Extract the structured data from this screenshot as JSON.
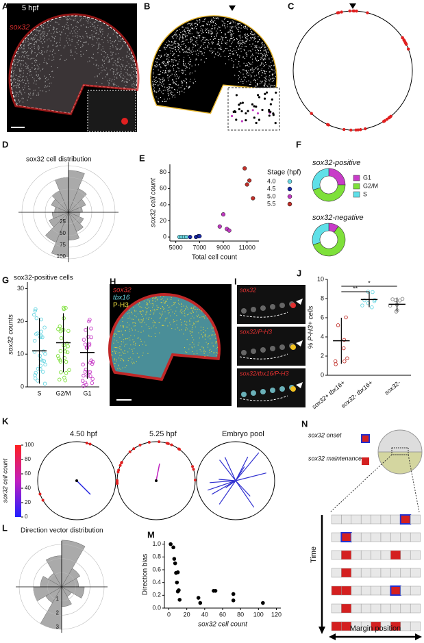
{
  "panels": {
    "A": {
      "letter": "A",
      "stage": "5 hpf",
      "gene": "sox32"
    },
    "B": {
      "letter": "B"
    },
    "C": {
      "letter": "C"
    },
    "D": {
      "letter": "D",
      "title": "sox32 cell distribution",
      "rings": [
        25,
        50,
        75,
        100
      ],
      "values": [
        90,
        55,
        40,
        30,
        25,
        35,
        45,
        60,
        95,
        70,
        45,
        35,
        30,
        40,
        50,
        75
      ]
    },
    "F": {
      "letter": "F",
      "positive": "sox32-positive",
      "negative": "sox32-negative",
      "legend": [
        "G1",
        "G2/M",
        "S"
      ],
      "colors": [
        "#c83cc8",
        "#7ee03a",
        "#5fe0e8"
      ],
      "positive_values": [
        25,
        45,
        30
      ],
      "negative_values": [
        10,
        60,
        30
      ]
    },
    "H": {
      "letter": "H",
      "labels": [
        "sox32",
        "tbx16",
        "P-H3"
      ]
    },
    "I": {
      "letter": "I",
      "labels": [
        "sox32",
        "sox32/P-H3",
        "sox32/tbx16/P-H3"
      ]
    },
    "K": {
      "letter": "K",
      "titles": [
        "4.50 hpf",
        "5.25 hpf",
        "Embryo pool"
      ],
      "colorbar_label": "sox32 cell count",
      "colorbar_ticks": [
        0,
        20,
        40,
        60,
        80,
        100
      ]
    },
    "L": {
      "letter": "L",
      "title": "Direction vector distribution",
      "rings": [
        1,
        2,
        3
      ],
      "values": [
        3.3,
        1.5,
        1.2,
        1.6,
        0.8,
        1.4,
        3.0,
        1.3,
        2.0,
        1.5,
        1.1,
        2.2
      ]
    },
    "N": {
      "letter": "N",
      "onset": "sox32 onset",
      "maintenance": "sox32 maintenance",
      "y_label": "Time",
      "x_label": "Margin position"
    }
  },
  "chart_data": [
    {
      "letter": "E",
      "type": "scatter",
      "x_label": "Total cell count",
      "y_label": "sox32 cell count",
      "legend_title": "Stage (hpf)",
      "xlim": [
        4500,
        12000
      ],
      "xticks": [
        5000,
        7000,
        9000,
        11000
      ],
      "ylim": [
        -5,
        90
      ],
      "yticks": [
        0,
        20,
        40,
        60,
        80
      ],
      "series": [
        {
          "name": "4.0",
          "color": "#6ad6e2",
          "x": [
            5300,
            5500,
            5700,
            5900
          ],
          "values": [
            0,
            0,
            0,
            0
          ]
        },
        {
          "name": "4.5",
          "color": "#1a2aa8",
          "x": [
            6200,
            6700,
            6900,
            7000
          ],
          "values": [
            0,
            0,
            1,
            1
          ]
        },
        {
          "name": "5.0",
          "color": "#c03ac0",
          "x": [
            8700,
            9000,
            9300,
            9500
          ],
          "values": [
            13,
            28,
            10,
            8
          ]
        },
        {
          "name": "5.5",
          "color": "#c0302a",
          "x": [
            10800,
            11000,
            11200,
            11500
          ],
          "values": [
            85,
            65,
            70,
            48
          ]
        }
      ]
    },
    {
      "letter": "G",
      "type": "meanerr",
      "title": "sox32-positive cells",
      "y_label": "sox32 counts",
      "categories": [
        "S",
        "G2/M",
        "G1"
      ],
      "colors": [
        "#6ad6e2",
        "#7ee03a",
        "#c83cc8"
      ],
      "values": [
        11,
        13.5,
        10.5
      ],
      "errors": [
        10,
        9,
        8
      ],
      "ylim": [
        0,
        32
      ],
      "yticks": [
        0,
        10,
        20,
        30
      ]
    },
    {
      "letter": "J",
      "type": "meanerr",
      "y_label": "% P-H3+ cells",
      "categories": [
        "sox32+ tbx16+",
        "sox32- tbx16+",
        "sox32-"
      ],
      "colors": [
        "#c0302a",
        "#6ad6e2",
        "#888888"
      ],
      "values": [
        3.6,
        7.9,
        7.4
      ],
      "errors": [
        2.4,
        0.8,
        0.7
      ],
      "annotations": [
        "**",
        "*"
      ],
      "ylim": [
        0,
        10
      ],
      "yticks": [
        0,
        2,
        4,
        6,
        8,
        10
      ]
    },
    {
      "letter": "M",
      "type": "scatter",
      "x_label": "sox32 cell count",
      "y_label": "Direction bias",
      "xlim": [
        -5,
        125
      ],
      "xticks": [
        0,
        20,
        40,
        60,
        80,
        100,
        120
      ],
      "ylim": [
        0,
        1.05
      ],
      "yticks": [
        {
          "value": 0,
          "label": "0.0"
        },
        {
          "value": 0.2,
          "label": "0.2"
        },
        {
          "value": 0.4,
          "label": "0.4"
        },
        {
          "value": 0.6,
          "label": "0.6"
        },
        {
          "value": 0.8,
          "label": "0.8"
        },
        {
          "value": 1,
          "label": "1.0"
        }
      ],
      "series": [
        {
          "color": "#000000",
          "x": [
            2,
            5,
            6,
            7,
            8,
            10,
            9,
            11,
            10,
            12,
            33,
            35,
            50,
            52,
            72,
            72,
            105
          ],
          "values": [
            1.0,
            0.95,
            0.77,
            0.7,
            0.55,
            0.56,
            0.4,
            0.28,
            0.26,
            0.13,
            0.16,
            0.08,
            0.27,
            0.27,
            0.22,
            0.12,
            0.08
          ]
        }
      ]
    }
  ]
}
